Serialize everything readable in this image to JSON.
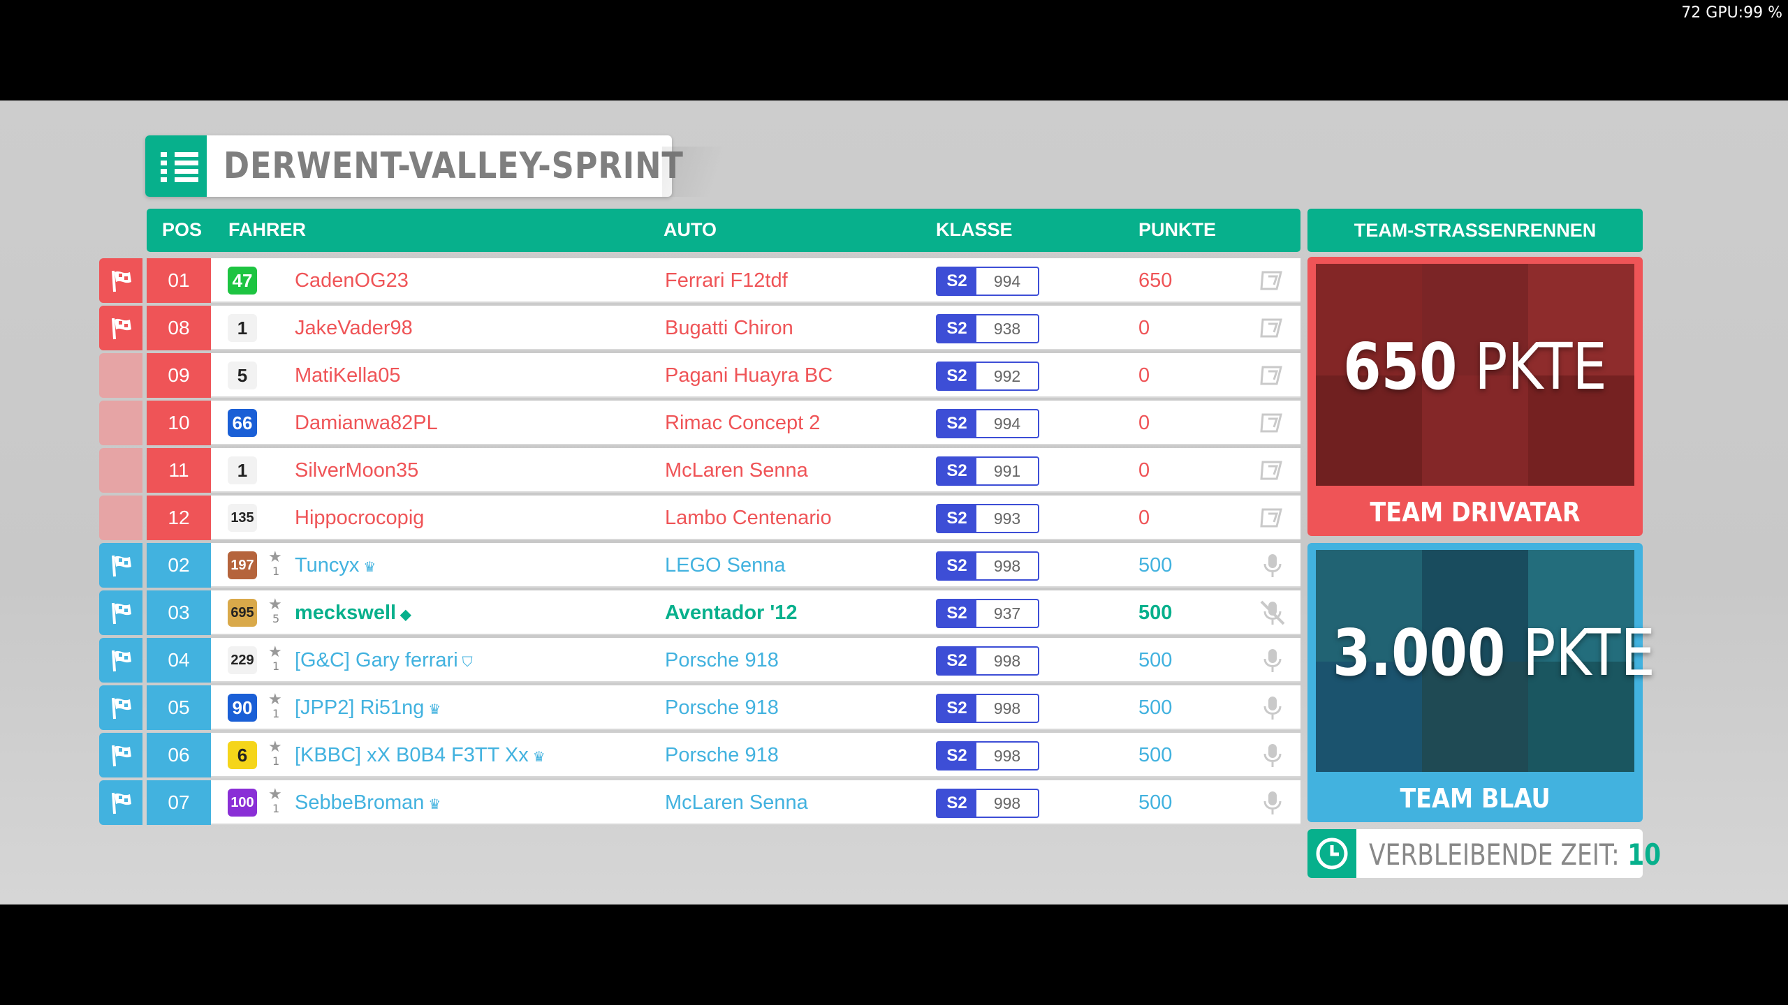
{
  "overlay": {
    "text": "72 GPU:99 %"
  },
  "event": {
    "title": "DERWENT-VALLEY-SPRINT"
  },
  "headers": {
    "pos": "POS",
    "driver": "FAHRER",
    "car": "AUTO",
    "class": "KLASSE",
    "points": "PUNKTE",
    "team": "TEAM-STRASSENRENNEN"
  },
  "colors": {
    "red_team": "#ef5457",
    "blue_team": "#42b2df",
    "accent": "#07b08c",
    "class_blue": "#3d4ed6"
  },
  "rows": [
    {
      "team": "red",
      "pos": "01",
      "level": "47",
      "level_color": "#1dc441",
      "stars": null,
      "driver": "CadenOG23",
      "crown": "",
      "car": "Ferrari F12tdf",
      "class": "S2",
      "rating": "994",
      "points": "650",
      "icon": "skip-icon",
      "flag": true,
      "bold": false
    },
    {
      "team": "red",
      "pos": "08",
      "level": "1",
      "level_color": "#f2f2f2",
      "stars": null,
      "driver": "JakeVader98",
      "crown": "",
      "car": "Bugatti Chiron",
      "class": "S2",
      "rating": "938",
      "points": "0",
      "icon": "skip-icon",
      "flag": true,
      "bold": false
    },
    {
      "team": "red",
      "pos": "09",
      "level": "5",
      "level_color": "#f2f2f2",
      "stars": null,
      "driver": "MatiKella05",
      "crown": "",
      "car": "Pagani Huayra BC",
      "class": "S2",
      "rating": "992",
      "points": "0",
      "icon": "skip-icon",
      "flag": false,
      "bold": false
    },
    {
      "team": "red",
      "pos": "10",
      "level": "66",
      "level_color": "#1a5fd6",
      "stars": null,
      "driver": "Damianwa82PL",
      "crown": "",
      "car": "Rimac Concept 2",
      "class": "S2",
      "rating": "994",
      "points": "0",
      "icon": "skip-icon",
      "flag": false,
      "bold": false
    },
    {
      "team": "red",
      "pos": "11",
      "level": "1",
      "level_color": "#f2f2f2",
      "stars": null,
      "driver": "SilverMoon35",
      "crown": "",
      "car": "McLaren Senna",
      "class": "S2",
      "rating": "991",
      "points": "0",
      "icon": "skip-icon",
      "flag": false,
      "bold": false
    },
    {
      "team": "red",
      "pos": "12",
      "level": "135",
      "level_color": "#f2f2f2",
      "stars": null,
      "driver": "Hippocrocopig",
      "crown": "",
      "car": "Lambo Centenario",
      "class": "S2",
      "rating": "993",
      "points": "0",
      "icon": "skip-icon",
      "flag": false,
      "bold": false
    },
    {
      "team": "blue",
      "pos": "02",
      "level": "197",
      "level_color": "#b5643c",
      "stars": "1",
      "driver": "Tuncyx",
      "crown": "♛",
      "car": "LEGO Senna",
      "class": "S2",
      "rating": "998",
      "points": "500",
      "icon": "mic-icon",
      "flag": true,
      "bold": false
    },
    {
      "team": "blue",
      "pos": "03",
      "level": "695",
      "level_color": "#d9a94a",
      "stars": "5",
      "driver": "meckswell",
      "crown": "◆",
      "car": "Aventador '12",
      "class": "S2",
      "rating": "937",
      "points": "500",
      "icon": "mic-muted-icon",
      "flag": true,
      "bold": true
    },
    {
      "team": "blue",
      "pos": "04",
      "level": "229",
      "level_color": "#f2f2f2",
      "stars": "1",
      "driver": "[G&C] Gary ferrari",
      "crown": "⛉",
      "car": "Porsche 918",
      "class": "S2",
      "rating": "998",
      "points": "500",
      "icon": "mic-icon",
      "flag": true,
      "bold": false
    },
    {
      "team": "blue",
      "pos": "05",
      "level": "90",
      "level_color": "#1a5fd6",
      "stars": "1",
      "driver": "[JPP2] Ri51ng",
      "crown": "♛",
      "car": "Porsche 918",
      "class": "S2",
      "rating": "998",
      "points": "500",
      "icon": "mic-icon",
      "flag": true,
      "bold": false
    },
    {
      "team": "blue",
      "pos": "06",
      "level": "6",
      "level_color": "#f5d51a",
      "stars": "1",
      "driver": "[KBBC] xX B0B4 F3TT Xx",
      "crown": "♛",
      "car": "Porsche 918",
      "class": "S2",
      "rating": "998",
      "points": "500",
      "icon": "mic-icon",
      "flag": true,
      "bold": false
    },
    {
      "team": "blue",
      "pos": "07",
      "level": "100",
      "level_color": "#8a2fd6",
      "stars": "1",
      "driver": "SebbeBroman",
      "crown": "♛",
      "car": "McLaren Senna",
      "class": "S2",
      "rating": "998",
      "points": "500",
      "icon": "mic-icon",
      "flag": true,
      "bold": false
    }
  ],
  "teams": {
    "red": {
      "score_num": "650",
      "score_unit": "PKTE",
      "name": "TEAM DRIVATAR"
    },
    "blue": {
      "score_num": "3.000",
      "score_unit": "PKTE",
      "name": "TEAM BLAU"
    }
  },
  "timer": {
    "label": "VERBLEIBENDE ZEIT:",
    "value": "10"
  }
}
